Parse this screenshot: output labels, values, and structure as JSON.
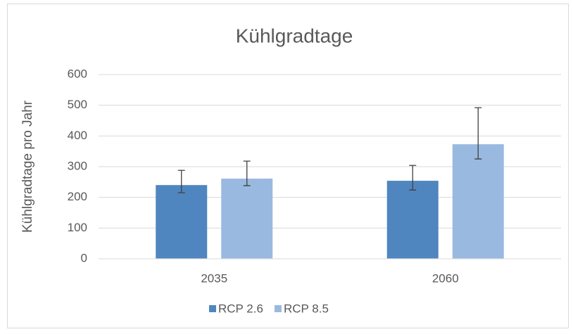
{
  "chart_data": {
    "type": "bar",
    "title": "Kühlgradtage",
    "y_label": "Kühlgradtage pro Jahr",
    "categories": [
      "2035",
      "2060"
    ],
    "series": [
      {
        "name": "RCP 2.6",
        "color": "#4f86c0",
        "values": [
          240,
          254
        ],
        "err_minus": [
          25,
          30
        ],
        "err_plus": [
          48,
          50
        ]
      },
      {
        "name": "RCP 8.5",
        "color": "#9ab9e0",
        "values": [
          261,
          373
        ],
        "err_minus": [
          23,
          48
        ],
        "err_plus": [
          57,
          119
        ]
      }
    ],
    "ylim": [
      0,
      600
    ],
    "yticks": [
      0,
      100,
      200,
      300,
      400,
      500,
      600
    ],
    "grid": true,
    "legend": "bottom"
  }
}
